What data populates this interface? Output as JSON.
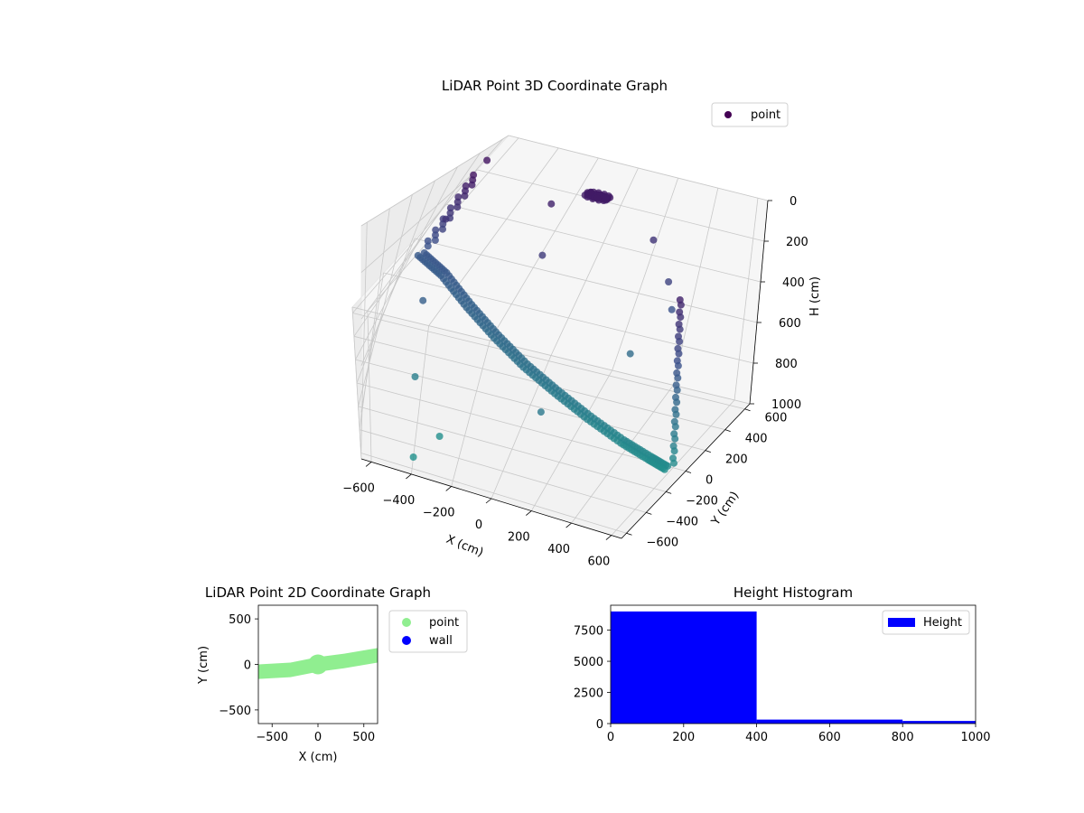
{
  "chart_data": [
    {
      "type": "scatter",
      "projection": "3d",
      "title": "LiDAR Point 3D Coordinate Graph",
      "xlabel": "X (cm)",
      "ylabel": "Y (cm)",
      "zlabel": "H (cm)",
      "xlim": [
        -650,
        650
      ],
      "ylim": [
        -650,
        650
      ],
      "zlim": [
        1000,
        0
      ],
      "xticks": [
        -600,
        -400,
        -200,
        0,
        200,
        400,
        600
      ],
      "yticks": [
        -600,
        -400,
        -200,
        0,
        200,
        400,
        600
      ],
      "zticks": [
        0,
        200,
        400,
        600,
        800,
        1000
      ],
      "grid": true,
      "legend": "top-right",
      "series": [
        {
          "name": "point",
          "colormap": "viridis",
          "description_color": "#440154",
          "curve_floor": [
            {
              "x": -620,
              "y": 420,
              "h": 560
            },
            {
              "x": -500,
              "y": 330,
              "h": 580
            },
            {
              "x": -350,
              "y": 220,
              "h": 640
            },
            {
              "x": -200,
              "y": 130,
              "h": 700
            },
            {
              "x": -50,
              "y": 60,
              "h": 760
            },
            {
              "x": 100,
              "y": 20,
              "h": 820
            },
            {
              "x": 250,
              "y": -10,
              "h": 880
            },
            {
              "x": 400,
              "y": -40,
              "h": 930
            },
            {
              "x": 520,
              "y": -60,
              "h": 960
            },
            {
              "x": 600,
              "y": -70,
              "h": 980
            }
          ],
          "column_left": [
            {
              "x": -620,
              "y": 420,
              "h": 120
            },
            {
              "x": -620,
              "y": 420,
              "h": 250
            },
            {
              "x": -620,
              "y": 420,
              "h": 380
            },
            {
              "x": -620,
              "y": 420,
              "h": 500
            }
          ],
          "column_right": [
            {
              "x": 620,
              "y": -60,
              "h": 200
            },
            {
              "x": 620,
              "y": -60,
              "h": 400
            },
            {
              "x": 620,
              "y": -60,
              "h": 600
            },
            {
              "x": 620,
              "y": -60,
              "h": 800
            },
            {
              "x": 620,
              "y": -60,
              "h": 950
            }
          ],
          "cluster": {
            "x": -100,
            "y": 600,
            "h": 150,
            "count": 60
          },
          "outliers": [
            {
              "x": -640,
              "y": 600,
              "h": 120
            },
            {
              "x": -600,
              "y": 300,
              "h": 300
            },
            {
              "x": -520,
              "y": 100,
              "h": 600
            },
            {
              "x": -450,
              "y": -100,
              "h": 850
            },
            {
              "x": -300,
              "y": -300,
              "h": 980
            },
            {
              "x": -400,
              "y": -500,
              "h": 1000
            },
            {
              "x": 100,
              "y": -200,
              "h": 800
            },
            {
              "x": 300,
              "y": 300,
              "h": 700
            },
            {
              "x": 200,
              "y": 600,
              "h": 300
            },
            {
              "x": 350,
              "y": 450,
              "h": 400
            },
            {
              "x": 400,
              "y": 400,
              "h": 500
            },
            {
              "x": -150,
              "y": 300,
              "h": 350
            },
            {
              "x": -250,
              "y": 500,
              "h": 200
            }
          ]
        }
      ]
    },
    {
      "type": "scatter",
      "title": "LiDAR Point 2D Coordinate Graph",
      "xlabel": "X (cm)",
      "ylabel": "Y (cm)",
      "xlim": [
        -650,
        650
      ],
      "ylim": [
        -650,
        650
      ],
      "xticks": [
        -500,
        0,
        500
      ],
      "yticks": [
        -500,
        0,
        500
      ],
      "legend": "outside-right",
      "series": [
        {
          "name": "point",
          "color": "#90ee90",
          "band_center": [
            [
              -650,
              -80
            ],
            [
              -300,
              -60
            ],
            [
              0,
              0
            ],
            [
              300,
              40
            ],
            [
              650,
              100
            ]
          ],
          "band_half_width": 80
        },
        {
          "name": "wall",
          "color": "#0000ff",
          "points": []
        }
      ]
    },
    {
      "type": "bar",
      "title": "Height Histogram",
      "xlim": [
        0,
        1000
      ],
      "ylim": [
        0,
        9500
      ],
      "xticks": [
        0,
        200,
        400,
        600,
        800,
        1000
      ],
      "yticks": [
        0,
        2500,
        5000,
        7500
      ],
      "legend": "top-right",
      "bins": [
        [
          0,
          400
        ],
        [
          400,
          800
        ],
        [
          800,
          1000
        ]
      ],
      "values": [
        9000,
        320,
        210
      ],
      "series": [
        {
          "name": "Height",
          "color": "#0000ff"
        }
      ]
    }
  ]
}
